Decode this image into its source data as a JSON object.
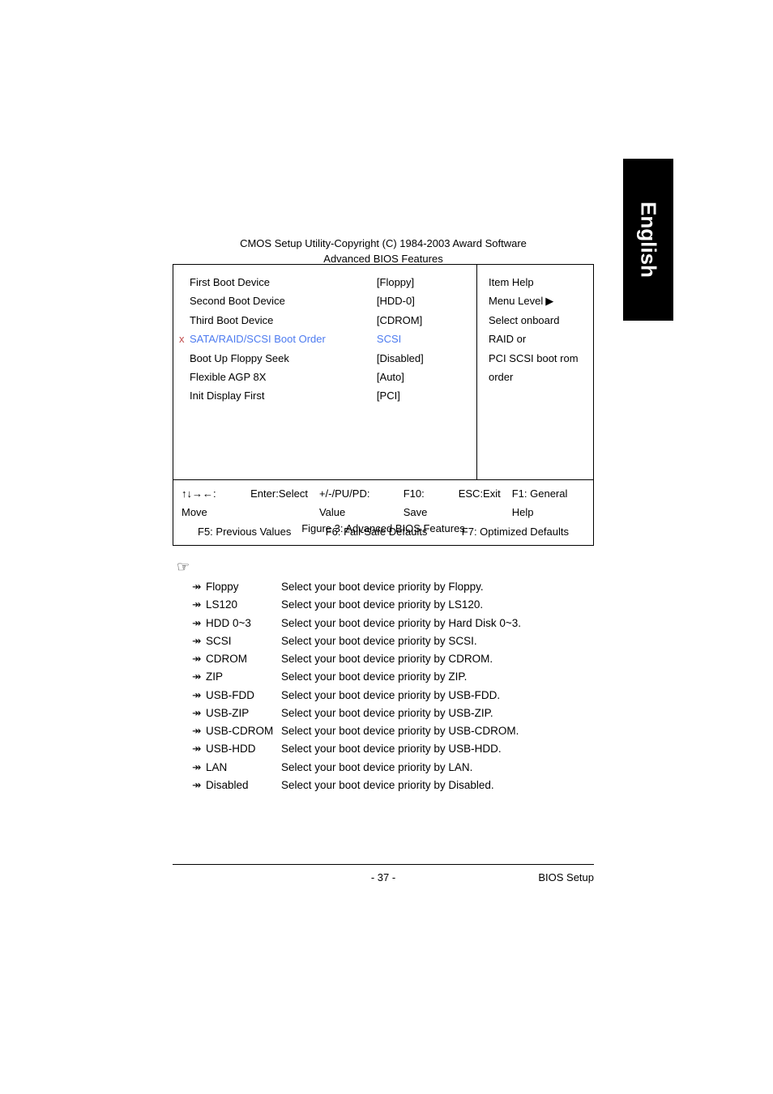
{
  "side_tab": "English",
  "header": "CMOS Setup Utility-Copyright (C) 1984-2003 Award Software",
  "subtitle": "Advanced BIOS Features",
  "bios": {
    "rows": [
      {
        "label": "First Boot Device",
        "value": "[Floppy]",
        "disabled": false
      },
      {
        "label": "Second Boot Device",
        "value": "[HDD-0]",
        "disabled": false
      },
      {
        "label": "Third Boot Device",
        "value": "[CDROM]",
        "disabled": false
      },
      {
        "label": "SATA/RAID/SCSI Boot Order",
        "value": "SCSI",
        "disabled": true
      },
      {
        "label": "Boot Up Floppy Seek",
        "value": "[Disabled]",
        "disabled": false
      },
      {
        "label": "Flexible AGP 8X",
        "value": "[Auto]",
        "disabled": false
      },
      {
        "label": "Init Display First",
        "value": "[PCI]",
        "disabled": false
      }
    ],
    "help": {
      "title": "Item Help",
      "menu_level": "Menu Level",
      "arrow": "▶",
      "lines": [
        "Select onboard RAID or",
        "PCI SCSI boot rom",
        "order"
      ]
    },
    "footer": {
      "row1": [
        "↑↓→←: Move",
        "Enter:Select",
        "+/-/PU/PD: Value",
        "F10: Save",
        "ESC:Exit",
        "F1: General Help"
      ],
      "row2": [
        "F5: Previous Values",
        "F6: Fail-Safe Defaults",
        "F7: Optimized Defaults"
      ]
    }
  },
  "figure_caption": "Figure 3: Advanced BIOS Features",
  "pointer": "☞",
  "options": [
    {
      "marker": "↠",
      "name": "Floppy",
      "desc": "Select your boot device priority by Floppy."
    },
    {
      "marker": "↠",
      "name": "LS120",
      "desc": "Select your boot device priority by LS120."
    },
    {
      "marker": "↠",
      "name": "HDD 0~3",
      "desc": "Select your boot device priority by Hard Disk 0~3."
    },
    {
      "marker": "↠",
      "name": "SCSI",
      "desc": "Select your boot device priority by SCSI."
    },
    {
      "marker": "↠",
      "name": "CDROM",
      "desc": "Select your boot device priority by CDROM."
    },
    {
      "marker": "↠",
      "name": "ZIP",
      "desc": "Select your boot device priority by ZIP."
    },
    {
      "marker": "↠",
      "name": "USB-FDD",
      "desc": "Select your boot device priority by USB-FDD."
    },
    {
      "marker": "↠",
      "name": "USB-ZIP",
      "desc": "Select your boot device priority by USB-ZIP."
    },
    {
      "marker": "↠",
      "name": "USB-CDROM",
      "desc": "Select your boot device priority by USB-CDROM."
    },
    {
      "marker": "↠",
      "name": "USB-HDD",
      "desc": "Select your boot device priority by USB-HDD."
    },
    {
      "marker": "↠",
      "name": "LAN",
      "desc": "Select your boot device priority by LAN."
    },
    {
      "marker": "↠",
      "name": "Disabled",
      "desc": "Select your boot device priority by Disabled."
    }
  ],
  "page_number": "- 37 -",
  "footer_right": "BIOS Setup",
  "colors": {
    "disabled_text": "#4d7bf0",
    "x_marker": "#c04a4a",
    "background": "#ffffff",
    "text": "#000000",
    "side_tab_bg": "#000000",
    "side_tab_text": "#ffffff"
  }
}
